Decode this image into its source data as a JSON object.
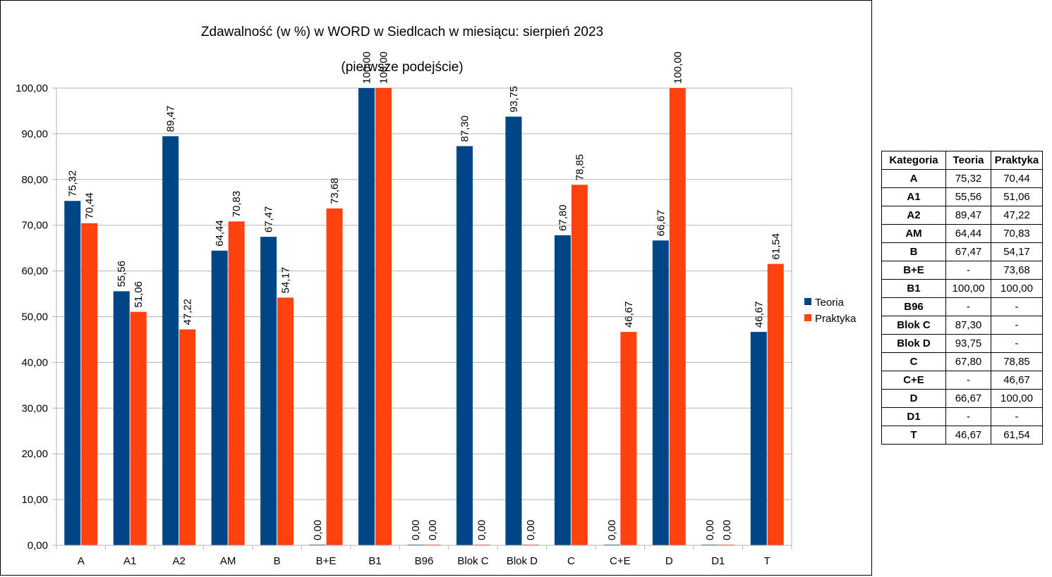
{
  "chart_data": {
    "type": "bar",
    "title": "Zdawalność (w %) w WORD w Siedlcach w miesiącu: sierpień 2023",
    "subtitle": "(pierwsze podejście)",
    "xlabel": "",
    "ylabel": "",
    "ylim": [
      0,
      100
    ],
    "yticks": [
      "0,00",
      "10,00",
      "20,00",
      "30,00",
      "40,00",
      "50,00",
      "60,00",
      "70,00",
      "80,00",
      "90,00",
      "100,00"
    ],
    "grid": true,
    "legend_position": "right",
    "categories": [
      "A",
      "A1",
      "A2",
      "AM",
      "B",
      "B+E",
      "B1",
      "B96",
      "Blok C",
      "Blok D",
      "C",
      "C+E",
      "D",
      "D1",
      "T"
    ],
    "series": [
      {
        "name": "Teoria",
        "color": "#004586",
        "values": [
          75.32,
          55.56,
          89.47,
          64.44,
          67.47,
          0,
          100,
          0,
          87.3,
          93.75,
          67.8,
          0,
          66.67,
          0,
          46.67
        ],
        "labels": [
          "75,32",
          "55,56",
          "89,47",
          "64,44",
          "67,47",
          "0,00",
          "100,00",
          "0,00",
          "87,30",
          "93,75",
          "67,80",
          "0,00",
          "66,67",
          "0,00",
          "46,67"
        ]
      },
      {
        "name": "Praktyka",
        "color": "#ff420e",
        "values": [
          70.44,
          51.06,
          47.22,
          70.83,
          54.17,
          73.68,
          100,
          0,
          0,
          0,
          78.85,
          46.67,
          100,
          0,
          61.54
        ],
        "labels": [
          "70,44",
          "51,06",
          "47,22",
          "70,83",
          "54,17",
          "73,68",
          "100,00",
          "0,00",
          "0,00",
          "0,00",
          "78,85",
          "46,67",
          "100,00",
          "0,00",
          "61,54"
        ]
      }
    ]
  },
  "table": {
    "headers": [
      "Kategoria",
      "Teoria",
      "Praktyka"
    ],
    "rows": [
      [
        "A",
        "75,32",
        "70,44"
      ],
      [
        "A1",
        "55,56",
        "51,06"
      ],
      [
        "A2",
        "89,47",
        "47,22"
      ],
      [
        "AM",
        "64,44",
        "70,83"
      ],
      [
        "B",
        "67,47",
        "54,17"
      ],
      [
        "B+E",
        "-",
        "73,68"
      ],
      [
        "B1",
        "100,00",
        "100,00"
      ],
      [
        "B96",
        "-",
        "-"
      ],
      [
        "Blok C",
        "87,30",
        "-"
      ],
      [
        "Blok D",
        "93,75",
        "-"
      ],
      [
        "C",
        "67,80",
        "78,85"
      ],
      [
        "C+E",
        "-",
        "46,67"
      ],
      [
        "D",
        "66,67",
        "100,00"
      ],
      [
        "D1",
        "-",
        "-"
      ],
      [
        "T",
        "46,67",
        "61,54"
      ]
    ]
  }
}
